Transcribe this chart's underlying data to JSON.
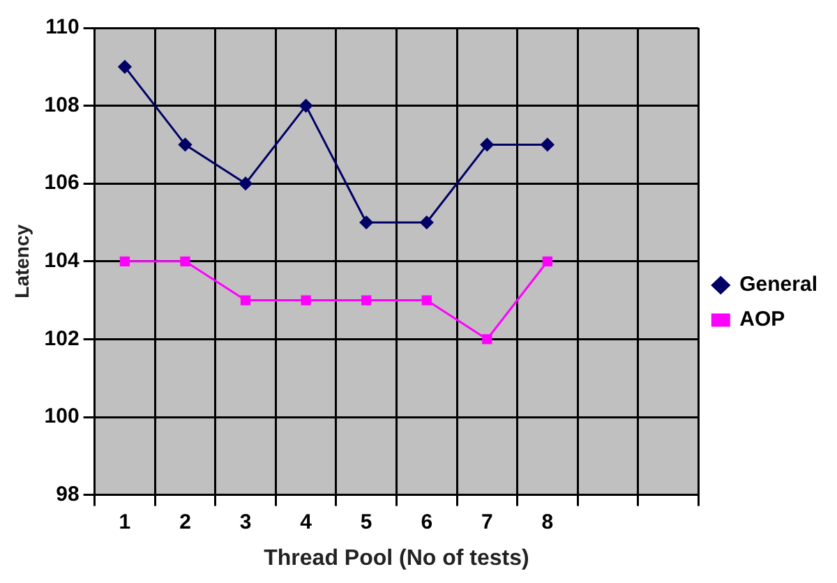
{
  "chart_data": {
    "type": "line",
    "xlabel": "Thread Pool (No of tests)",
    "ylabel": "Latency",
    "categories": [
      "1",
      "2",
      "3",
      "4",
      "5",
      "6",
      "7",
      "8",
      null,
      null
    ],
    "series": [
      {
        "name": "General",
        "color": "#000066",
        "marker": "diamond",
        "values": [
          109,
          107,
          106,
          108,
          105,
          105,
          107,
          107,
          null,
          null
        ]
      },
      {
        "name": "AOP",
        "color": "#ff00ff",
        "marker": "square",
        "values": [
          104,
          104,
          103,
          103,
          103,
          103,
          102,
          104,
          null,
          null
        ]
      }
    ],
    "ylim": [
      98,
      110
    ],
    "yticks": [
      98,
      100,
      102,
      104,
      106,
      108,
      110
    ],
    "grid": true,
    "legend": "right"
  }
}
